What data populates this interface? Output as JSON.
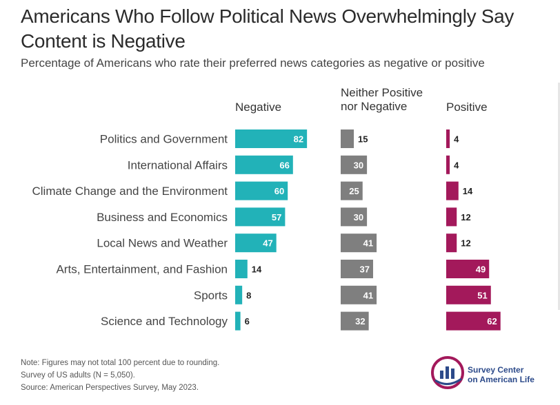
{
  "header": {
    "title": "Americans Who Follow Political News Overwhelmingly Say Content is Negative",
    "subtitle": "Percentage of Americans who rate their preferred news categories as negative or positive"
  },
  "columns": {
    "negative": "Negative",
    "neither_line1": "Neither Positive",
    "neither_line2": "nor Negative",
    "positive": "Positive"
  },
  "colors": {
    "negative": "#22B2B8",
    "neither": "#7F7F7F",
    "positive": "#A3195B"
  },
  "chart_data": {
    "type": "bar",
    "title": "Americans Who Follow Political News Overwhelmingly Say Content is Negative",
    "subtitle": "Percentage of Americans who rate their preferred news categories as negative or positive",
    "categories": [
      "Politics and Government",
      "International Affairs",
      "Climate Change and the Environment",
      "Business and Economics",
      "Local News and Weather",
      "Arts, Entertainment, and Fashion",
      "Sports",
      "Science and Technology"
    ],
    "series": [
      {
        "name": "Negative",
        "values": [
          82,
          66,
          60,
          57,
          47,
          14,
          8,
          6
        ]
      },
      {
        "name": "Neither Positive nor Negative",
        "values": [
          15,
          30,
          25,
          30,
          41,
          37,
          41,
          32
        ]
      },
      {
        "name": "Positive",
        "values": [
          4,
          4,
          14,
          12,
          12,
          49,
          51,
          62
        ]
      }
    ],
    "xlabel": "",
    "ylabel": "",
    "xlim": [
      0,
      100
    ]
  },
  "footer": {
    "note_line1": "Note: Figures may not total 100 percent due to rounding.",
    "note_line2": "Survey of US adults (N = 5,050).",
    "note_line3": "Source: American Perspectives Survey, May 2023."
  },
  "logo": {
    "line1": "Survey Center",
    "line2": "on American Life"
  }
}
